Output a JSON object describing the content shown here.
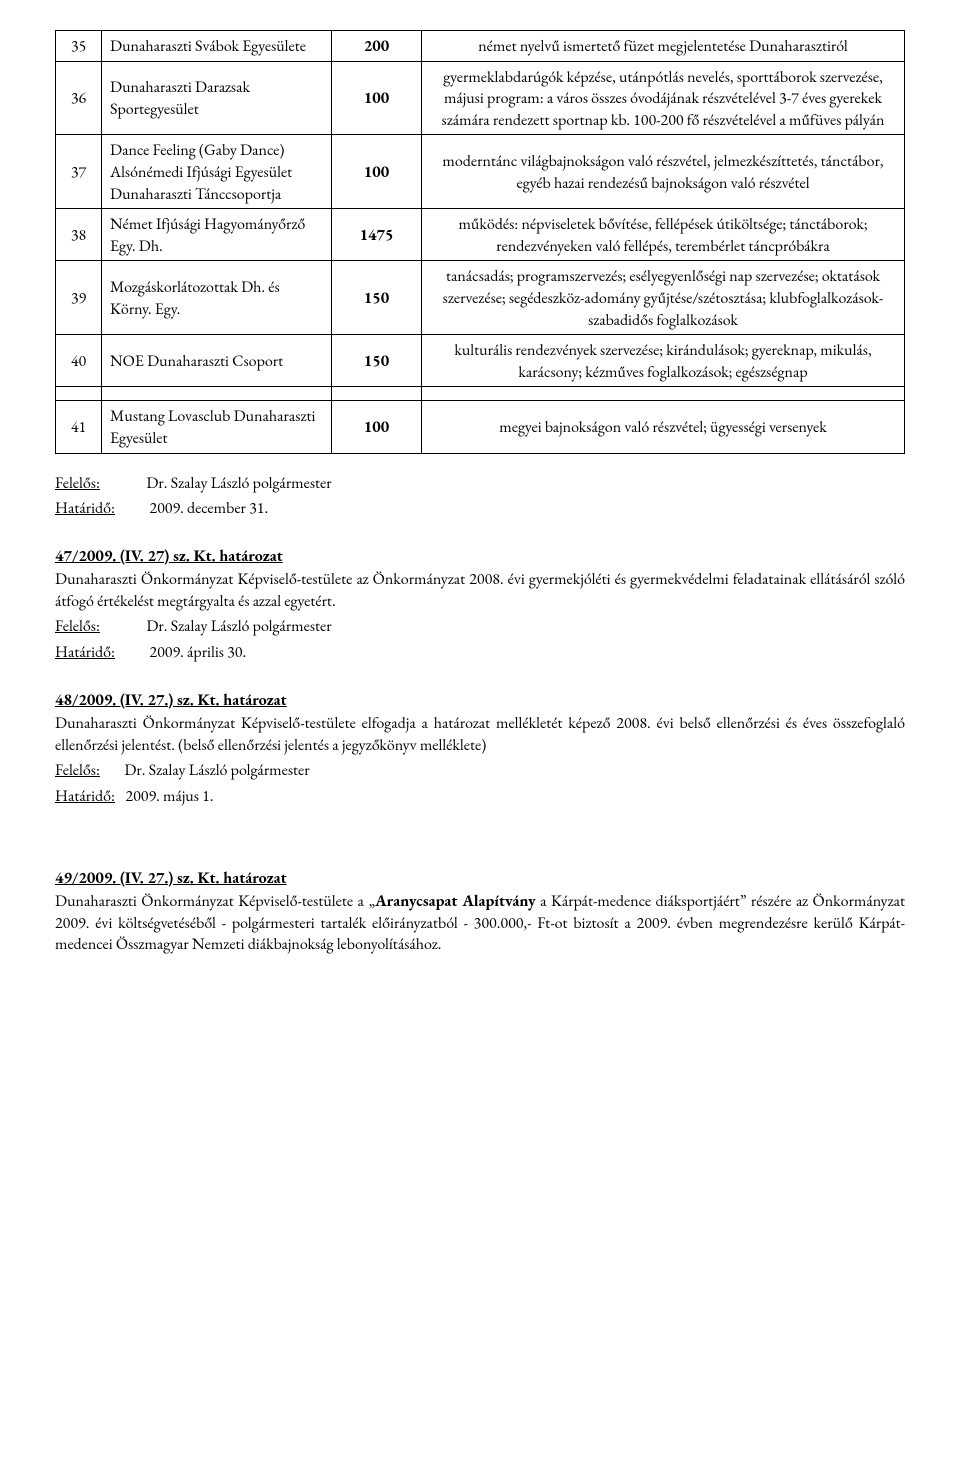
{
  "rows": [
    {
      "n": "35",
      "org": "Dunaharaszti Svábok Egyesülete",
      "val": "200",
      "desc": "német nyelvű ismertető füzet megjelentetése Dunaharasztiról"
    },
    {
      "n": "36",
      "org": "Dunaharaszti Darazsak Sportegyesület",
      "val": "100",
      "desc": "gyermeklabdarúgók képzése, utánpótlás nevelés, sporttáborok szervezése, májusi program: a város összes óvodájának részvételével 3-7 éves gyerekek számára rendezett sportnap kb. 100-200 fő részvételével a műfüves pályán"
    },
    {
      "n": "37",
      "org": "Dance Feeling (Gaby Dance) Alsónémedi Ifjúsági Egyesület Dunaharaszti Tánccsoportja",
      "val": "100",
      "desc": "moderntánc világbajnokságon való részvétel, jelmezkészíttetés, tánctábor, egyéb hazai rendezésű bajnokságon való részvétel"
    },
    {
      "n": "38",
      "org": "Német Ifjúsági Hagyományőrző Egy. Dh.",
      "val": "1475",
      "desc": "működés: népviseletek bővítése, fellépések útiköltsége; tánctáborok; rendezvényeken való fellépés, terembérlet táncpróbákra"
    },
    {
      "n": "39",
      "org": "Mozgáskorlátozottak Dh. és Körny. Egy.",
      "val": "150",
      "desc": "tanácsadás; programszervezés; esélyegyenlőségi nap szervezése; oktatások szervezése; segédeszköz-adomány gyűjtése/szétosztása; klubfoglalkozások-szabadidős foglalkozások"
    },
    {
      "n": "40",
      "org": "NOE Dunaharaszti Csoport",
      "val": "150",
      "desc": "kulturális rendezvények szervezése; kirándulások; gyereknap, mikulás, karácsony; kézműves foglalkozások; egészségnap"
    }
  ],
  "row41": {
    "n": "41",
    "org": "Mustang Lovasclub Dunaharaszti Egyesület",
    "val": "100",
    "desc": "megyei bajnokságon való részvétel; ügyességi versenyek"
  },
  "meta1": {
    "felelos_label": "Felelős:",
    "felelos_val": "Dr. Szalay László polgármester",
    "hatarido_label": "Határidő:",
    "hatarido_val": "2009. december 31."
  },
  "s47": {
    "title": "47/2009. (IV. 27) sz. Kt. határozat",
    "body": "Dunaharaszti Önkormányzat Képviselő-testülete az Önkormányzat 2008. évi gyermekjóléti és gyermekvédelmi feladatainak ellátásáról szóló átfogó értékelést megtárgyalta és azzal egyetért.",
    "felelos_label": "Felelős:",
    "felelos_val": "Dr. Szalay László polgármester",
    "hatarido_label": "Határidő:",
    "hatarido_val": "2009. április 30."
  },
  "s48": {
    "title": "48/2009. (IV. 27.) sz. Kt. határozat",
    "body": "Dunaharaszti Önkormányzat Képviselő-testülete elfogadja a határozat mellékletét képező 2008. évi belső ellenőrzési és éves összefoglaló ellenőrzési jelentést. (belső ellenőrzési jelentés a jegyzőkönyv melléklete)",
    "felelos_label": "Felelős:",
    "felelos_val": "Dr. Szalay László polgármester",
    "hatarido_label": "Határidő:",
    "hatarido_val": "2009. május 1."
  },
  "s49": {
    "title": "49/2009. (IV. 27.) sz. Kt. határozat",
    "body_pre": "Dunaharaszti Önkormányzat Képviselő-testülete a „",
    "body_bold": "Aranycsapat Alapítvány",
    "body_post": " a Kárpát-medence diáksportjáért” részére az Önkormányzat 2009. évi költségvetéséből - polgármesteri tartalék előirányzatból - 300.000,- Ft-ot biztosít a 2009. évben megrendezésre kerülő Kárpát-medencei Összmagyar Nemzeti diákbajnokság lebonyolításához."
  }
}
